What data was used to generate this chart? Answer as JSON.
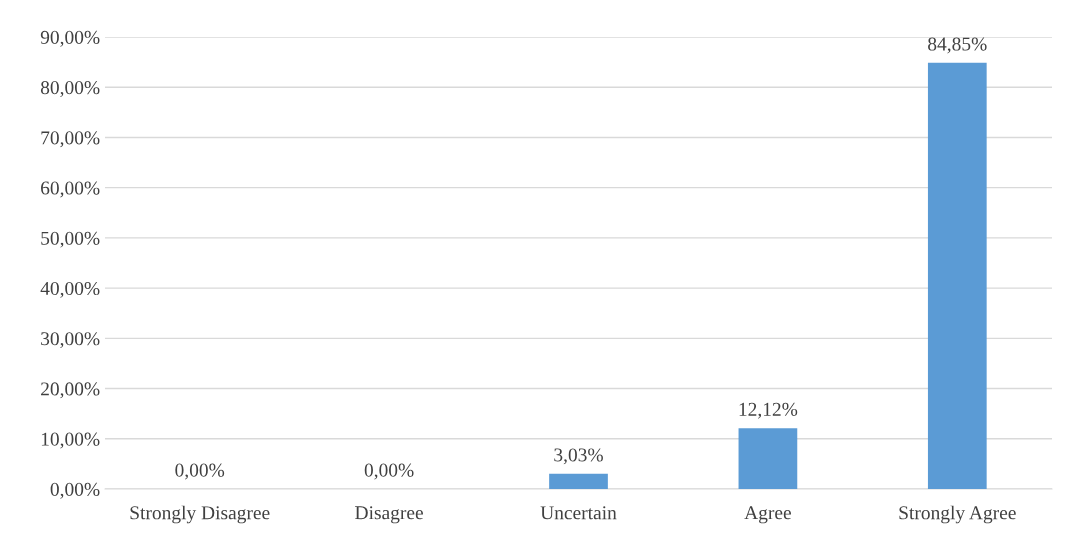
{
  "chart_data": {
    "type": "bar",
    "categories": [
      "Strongly Disagree",
      "Disagree",
      "Uncertain",
      "Agree",
      "Strongly Agree"
    ],
    "values": [
      0,
      0,
      3.03,
      12.12,
      84.85
    ],
    "value_labels": [
      "0,00%",
      "0,00%",
      "3,03%",
      "12,12%",
      "84,85%"
    ],
    "color": "#5b9bd5",
    "ylim": [
      0,
      90
    ],
    "yticks": [
      {
        "value": 0,
        "label": "0,00%"
      },
      {
        "value": 10,
        "label": "10,00%"
      },
      {
        "value": 20,
        "label": "20,00%"
      },
      {
        "value": 30,
        "label": "30,00%"
      },
      {
        "value": 40,
        "label": "40,00%"
      },
      {
        "value": 50,
        "label": "50,00%"
      },
      {
        "value": 60,
        "label": "60,00%"
      },
      {
        "value": 70,
        "label": "70,00%"
      },
      {
        "value": 80,
        "label": "80,00%"
      },
      {
        "value": 90,
        "label": "90,00%"
      }
    ],
    "grid": "y",
    "legend": false
  }
}
